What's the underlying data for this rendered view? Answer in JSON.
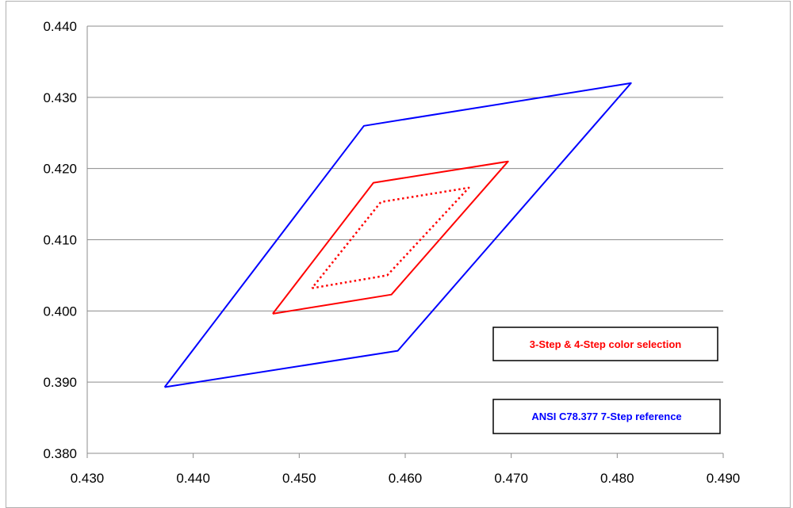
{
  "chart_data": {
    "type": "line",
    "title": "",
    "xlabel": "",
    "ylabel": "",
    "xlim": [
      0.43,
      0.49
    ],
    "ylim": [
      0.38,
      0.44
    ],
    "x_ticks": [
      "0.430",
      "0.440",
      "0.450",
      "0.460",
      "0.470",
      "0.480",
      "0.490"
    ],
    "y_ticks": [
      "0.440",
      "0.430",
      "0.420",
      "0.410",
      "0.400",
      "0.390",
      "0.380"
    ],
    "grid": "horizontal",
    "legend_placement": "bottom-right",
    "series": [
      {
        "name": "ANSI C78.377 7-Step reference",
        "color": "#0000ff",
        "style": "solid",
        "points": [
          [
            0.4373,
            0.3893
          ],
          [
            0.4593,
            0.3944
          ],
          [
            0.4813,
            0.432
          ],
          [
            0.4561,
            0.426
          ],
          [
            0.4373,
            0.3893
          ]
        ]
      },
      {
        "name": "3-Step & 4-Step color selection",
        "color": "#ff0000",
        "style": "solid",
        "points": [
          [
            0.4475,
            0.3996
          ],
          [
            0.4587,
            0.4023
          ],
          [
            0.4697,
            0.421
          ],
          [
            0.457,
            0.418
          ],
          [
            0.4475,
            0.3996
          ]
        ]
      },
      {
        "name": "",
        "color": "#ff0000",
        "style": "dotted",
        "points": [
          [
            0.4512,
            0.4032
          ],
          [
            0.4583,
            0.405
          ],
          [
            0.466,
            0.4173
          ],
          [
            0.4577,
            0.4153
          ],
          [
            0.4512,
            0.4032
          ]
        ]
      }
    ],
    "legend": [
      {
        "label": "3-Step & 4-Step color selection",
        "color": "#ff0000"
      },
      {
        "label": "ANSI C78.377 7-Step reference",
        "color": "#0000ff"
      }
    ]
  }
}
